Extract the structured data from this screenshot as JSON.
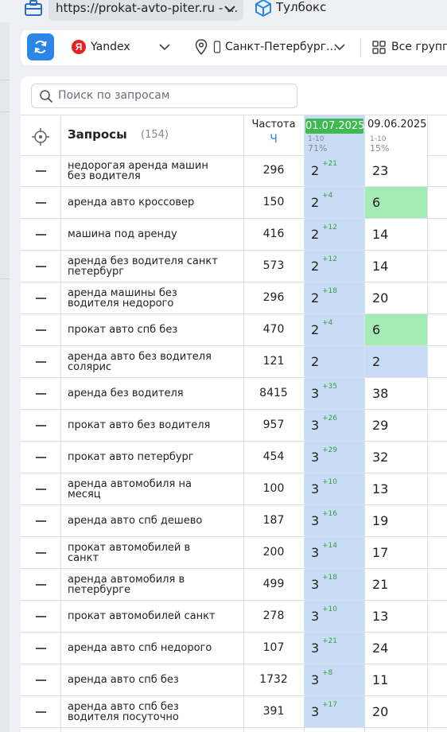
{
  "top": {
    "url": "https://prokat-avto-piter.ru - ...",
    "toolbox_label": "Тулбокс"
  },
  "filters": {
    "engine": "Yandex",
    "city": "Санкт-Петербург...",
    "groups": "Все группы"
  },
  "search": {
    "placeholder": "Поиск по запросам"
  },
  "table": {
    "query_header": "Запросы",
    "query_count": "(154)",
    "freq_header": "Частота",
    "freq_sub": "Ч",
    "date1": {
      "label": "01.07.2025",
      "range": "1-10",
      "pct": "71%"
    },
    "date2": {
      "label": "09.06.2025",
      "range": "1-10",
      "pct": "15%"
    },
    "rows": [
      {
        "q": "недорогая аренда машин без водителя",
        "f": "296",
        "p1": "2",
        "d": "+21",
        "p2": "23",
        "c2": "white"
      },
      {
        "q": "аренда авто кроссовер",
        "f": "150",
        "p1": "2",
        "d": "+4",
        "p2": "6",
        "c2": "green"
      },
      {
        "q": "машина под аренду",
        "f": "416",
        "p1": "2",
        "d": "+12",
        "p2": "14",
        "c2": "white"
      },
      {
        "q": "аренда без водителя санкт петербург",
        "f": "573",
        "p1": "2",
        "d": "+12",
        "p2": "14",
        "c2": "white"
      },
      {
        "q": "аренда машины без водителя недорого",
        "f": "296",
        "p1": "2",
        "d": "+18",
        "p2": "20",
        "c2": "white"
      },
      {
        "q": "прокат авто спб без",
        "f": "470",
        "p1": "2",
        "d": "+4",
        "p2": "6",
        "c2": "green"
      },
      {
        "q": "аренда авто без водителя солярис",
        "f": "121",
        "p1": "2",
        "d": "",
        "p2": "2",
        "c2": "blue"
      },
      {
        "q": "аренда без водителя",
        "f": "8415",
        "p1": "3",
        "d": "+35",
        "p2": "38",
        "c2": "white"
      },
      {
        "q": "прокат авто без водителя",
        "f": "957",
        "p1": "3",
        "d": "+26",
        "p2": "29",
        "c2": "white"
      },
      {
        "q": "прокат авто петербург",
        "f": "454",
        "p1": "3",
        "d": "+29",
        "p2": "32",
        "c2": "white"
      },
      {
        "q": "аренда автомобиля на месяц",
        "f": "100",
        "p1": "3",
        "d": "+10",
        "p2": "13",
        "c2": "white"
      },
      {
        "q": "аренда авто спб дешево",
        "f": "187",
        "p1": "3",
        "d": "+16",
        "p2": "19",
        "c2": "white"
      },
      {
        "q": "прокат автомобилей в санкт",
        "f": "200",
        "p1": "3",
        "d": "+14",
        "p2": "17",
        "c2": "white"
      },
      {
        "q": "аренда автомобиля в петербурге",
        "f": "499",
        "p1": "3",
        "d": "+18",
        "p2": "21",
        "c2": "white"
      },
      {
        "q": "прокат автомобилей санкт",
        "f": "278",
        "p1": "3",
        "d": "+10",
        "p2": "13",
        "c2": "white"
      },
      {
        "q": "аренда авто спб недорого",
        "f": "107",
        "p1": "3",
        "d": "+21",
        "p2": "24",
        "c2": "white"
      },
      {
        "q": "аренда авто спб без",
        "f": "1732",
        "p1": "3",
        "d": "+8",
        "p2": "11",
        "c2": "white"
      },
      {
        "q": "аренда авто спб без водителя посуточно",
        "f": "391",
        "p1": "3",
        "d": "+17",
        "p2": "20",
        "c2": "white"
      }
    ]
  },
  "colors": {
    "accent": "#2b86e6",
    "date_highlight": "#3fb950",
    "cell_blue": "#c9dcf5",
    "cell_green": "#a3ecb6",
    "delta_green": "#3a9c44"
  }
}
